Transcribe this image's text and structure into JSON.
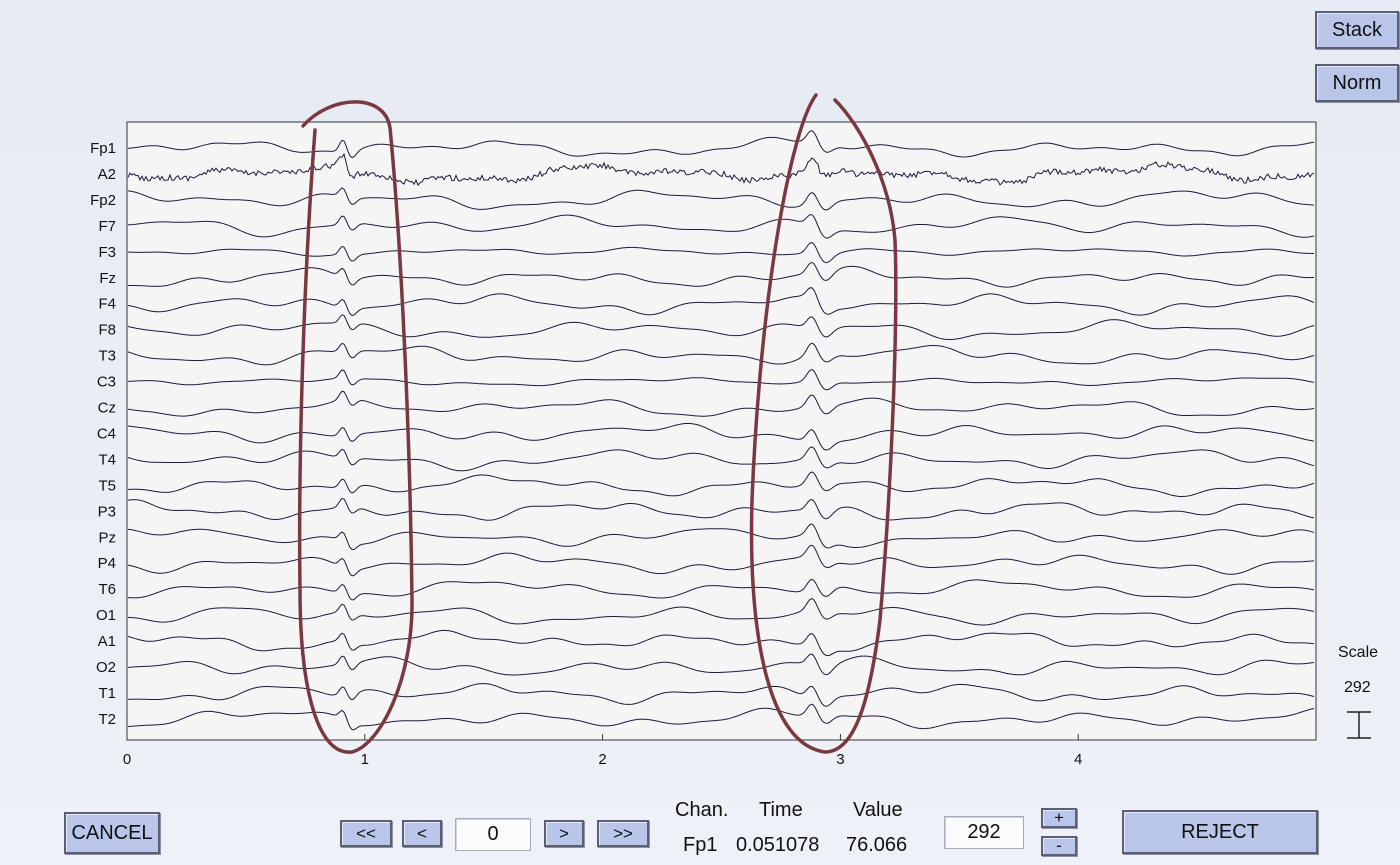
{
  "toolbar": {
    "stack_label": "Stack",
    "norm_label": "Norm"
  },
  "plot": {
    "channels": [
      "Fp1",
      "A2",
      "Fp2",
      "F7",
      "F3",
      "Fz",
      "F4",
      "F8",
      "T3",
      "C3",
      "Cz",
      "C4",
      "T4",
      "T5",
      "P3",
      "Pz",
      "P4",
      "T6",
      "O1",
      "A1",
      "O2",
      "T1",
      "T2"
    ],
    "x_ticks": [
      "0",
      "1",
      "2",
      "3",
      "4"
    ],
    "x_range": [
      0,
      5
    ],
    "annotation_color": "#7a3840",
    "trace_color": "#1c1b3a"
  },
  "scale": {
    "label": "Scale",
    "value": "292"
  },
  "controls": {
    "cancel_label": "CANCEL",
    "first_label": "<<",
    "prev_label": "<",
    "position_value": "0",
    "next_label": ">",
    "last_label": ">>",
    "chan_header": "Chan.",
    "time_header": "Time",
    "value_header": "Value",
    "chan_value": "Fp1",
    "time_value": "0.051078",
    "value_value": "76.066",
    "scale_value": "292",
    "plus_label": "+",
    "minus_label": "-",
    "reject_label": "REJECT"
  }
}
